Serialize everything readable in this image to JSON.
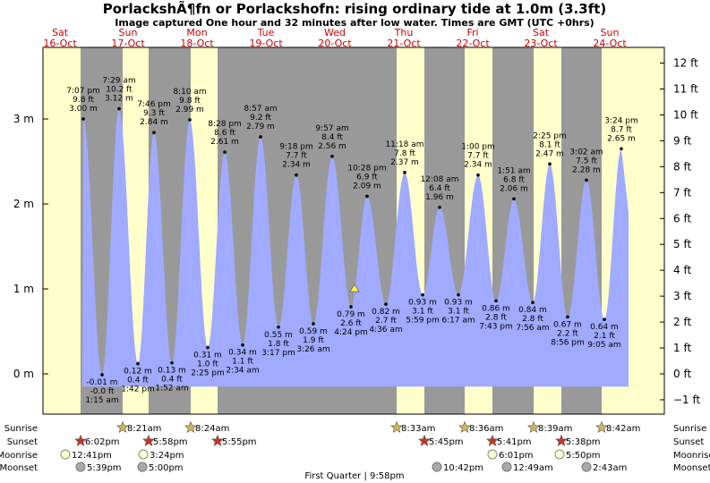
{
  "title": "PorlackshÃ¶fn or Porlackshofn: rising  ordinary tide at 1.0m (3.3ft)",
  "subtitle": "Image captured One hour and 32 minutes after low water. Times are GMT (UTC +0hrs)",
  "days": [
    {
      "dow": "Sat",
      "date": "16-Oct"
    },
    {
      "dow": "Sun",
      "date": "17-Oct"
    },
    {
      "dow": "Mon",
      "date": "18-Oct"
    },
    {
      "dow": "Tue",
      "date": "19-Oct"
    },
    {
      "dow": "Wed",
      "date": "20-Oct"
    },
    {
      "dow": "Thu",
      "date": "21-Oct"
    },
    {
      "dow": "Fri",
      "date": "22-Oct"
    },
    {
      "dow": "Sat",
      "date": "23-Oct"
    },
    {
      "dow": "Sun",
      "date": "24-Oct"
    }
  ],
  "chart_data": {
    "type": "area",
    "y_left_ticks": [
      "0 m",
      "1 m",
      "2 m",
      "3 m"
    ],
    "y_right_ticks": [
      "−1 ft",
      "0 ft",
      "1 ft",
      "2 ft",
      "3 ft",
      "4 ft",
      "5 ft",
      "6 ft",
      "7 ft",
      "8 ft",
      "9 ft",
      "10 ft",
      "11 ft",
      "12 ft"
    ],
    "ylim_m": [
      -0.45,
      3.7
    ],
    "tides": [
      {
        "t": "7:07 pm",
        "ft": "9.8 ft",
        "m": "3.00 m",
        "h": 3.0,
        "high": true
      },
      {
        "t": "1:15 am",
        "ft": "-0.0 ft",
        "m": "-0.01 m",
        "h": -0.01,
        "high": false
      },
      {
        "t": "7:29 am",
        "ft": "10.2 ft",
        "m": "3.12 m",
        "h": 3.12,
        "high": true
      },
      {
        "t": "1:42 pm",
        "ft": "0.4 ft",
        "m": "0.12 m",
        "h": 0.12,
        "high": false
      },
      {
        "t": "7:46 pm",
        "ft": "9.3 ft",
        "m": "2.84 m",
        "h": 2.84,
        "high": true
      },
      {
        "t": "1:52 am",
        "ft": "0.4 ft",
        "m": "0.13 m",
        "h": 0.13,
        "high": false
      },
      {
        "t": "8:10 am",
        "ft": "9.8 ft",
        "m": "2.99 m",
        "h": 2.99,
        "high": true
      },
      {
        "t": "2:25 pm",
        "ft": "1.0 ft",
        "m": "0.31 m",
        "h": 0.31,
        "high": false
      },
      {
        "t": "8:28 pm",
        "ft": "8.6 ft",
        "m": "2.61 m",
        "h": 2.61,
        "high": true
      },
      {
        "t": "2:34 am",
        "ft": "1.1 ft",
        "m": "0.34 m",
        "h": 0.34,
        "high": false
      },
      {
        "t": "8:57 am",
        "ft": "9.2 ft",
        "m": "2.79 m",
        "h": 2.79,
        "high": true
      },
      {
        "t": "3:17 pm",
        "ft": "1.8 ft",
        "m": "0.55 m",
        "h": 0.55,
        "high": false
      },
      {
        "t": "9:18 pm",
        "ft": "7.7 ft",
        "m": "2.34 m",
        "h": 2.34,
        "high": true
      },
      {
        "t": "3:26 am",
        "ft": "1.9 ft",
        "m": "0.59 m",
        "h": 0.59,
        "high": false
      },
      {
        "t": "9:57 am",
        "ft": "8.4 ft",
        "m": "2.56 m",
        "h": 2.56,
        "high": true
      },
      {
        "t": "4:24 pm",
        "ft": "2.6 ft",
        "m": "0.79 m",
        "h": 0.79,
        "high": false
      },
      {
        "t": "10:28 pm",
        "ft": "6.9 ft",
        "m": "2.09 m",
        "h": 2.09,
        "high": true
      },
      {
        "t": "4:36 am",
        "ft": "2.7 ft",
        "m": "0.82 m",
        "h": 0.82,
        "high": false
      },
      {
        "t": "11:18 am",
        "ft": "7.8 ft",
        "m": "2.37 m",
        "h": 2.37,
        "high": true
      },
      {
        "t": "5:59 pm",
        "ft": "3.1 ft",
        "m": "0.93 m",
        "h": 0.93,
        "high": false
      },
      {
        "t": "12:08 am",
        "ft": "6.4 ft",
        "m": "1.96 m",
        "h": 1.96,
        "high": true
      },
      {
        "t": "6:17 am",
        "ft": "3.1 ft",
        "m": "0.93 m",
        "h": 0.93,
        "high": false
      },
      {
        "t": "1:00 pm",
        "ft": "7.7 ft",
        "m": "2.34 m",
        "h": 2.34,
        "high": true
      },
      {
        "t": "7:43 pm",
        "ft": "2.8 ft",
        "m": "0.86 m",
        "h": 0.86,
        "high": false
      },
      {
        "t": "1:51 am",
        "ft": "6.8 ft",
        "m": "2.06 m",
        "h": 2.06,
        "high": true
      },
      {
        "t": "7:56 am",
        "ft": "2.8 ft",
        "m": "0.84 m",
        "h": 0.84,
        "high": false
      },
      {
        "t": "2:25 pm",
        "ft": "8.1 ft",
        "m": "2.47 m",
        "h": 2.47,
        "high": true
      },
      {
        "t": "8:56 pm",
        "ft": "2.2 ft",
        "m": "0.67 m",
        "h": 0.67,
        "high": false
      },
      {
        "t": "3:02 am",
        "ft": "7.5 ft",
        "m": "2.28 m",
        "h": 2.28,
        "high": true
      },
      {
        "t": "9:05 am",
        "ft": "2.1 ft",
        "m": "0.64 m",
        "h": 0.64,
        "high": false
      },
      {
        "t": "3:24 pm",
        "ft": "8.7 ft",
        "m": "2.65 m",
        "h": 2.65,
        "high": true
      }
    ],
    "current_level_m": 1.0
  },
  "legend_rows": [
    "Sunrise",
    "Sunset",
    "Moonrise",
    "Moonset"
  ],
  "sunrise": [
    "8:21am",
    "8:24am",
    "8:33am",
    "8:36am",
    "8:39am",
    "8:42am"
  ],
  "sunset": [
    "6:02pm",
    "5:58pm",
    "5:55pm",
    "5:45pm",
    "5:41pm",
    "5:38pm"
  ],
  "moonrise": [
    "12:41pm",
    "3:24pm",
    "6:01pm",
    "5:50pm"
  ],
  "moonset": [
    "5:39pm",
    "5:00pm",
    "10:42pm",
    "12:49am",
    "2:43am"
  ],
  "moon_phase": "First Quarter | 9:58pm",
  "colors": {
    "night": "#999999",
    "day": "#ffffcc",
    "water": "#a0aaff",
    "sun": "#d2b45a",
    "sunset": "#cc3322",
    "moon": "#ffffcc",
    "moonset": "#aaaaaa",
    "daylabel": "#cc0000"
  }
}
